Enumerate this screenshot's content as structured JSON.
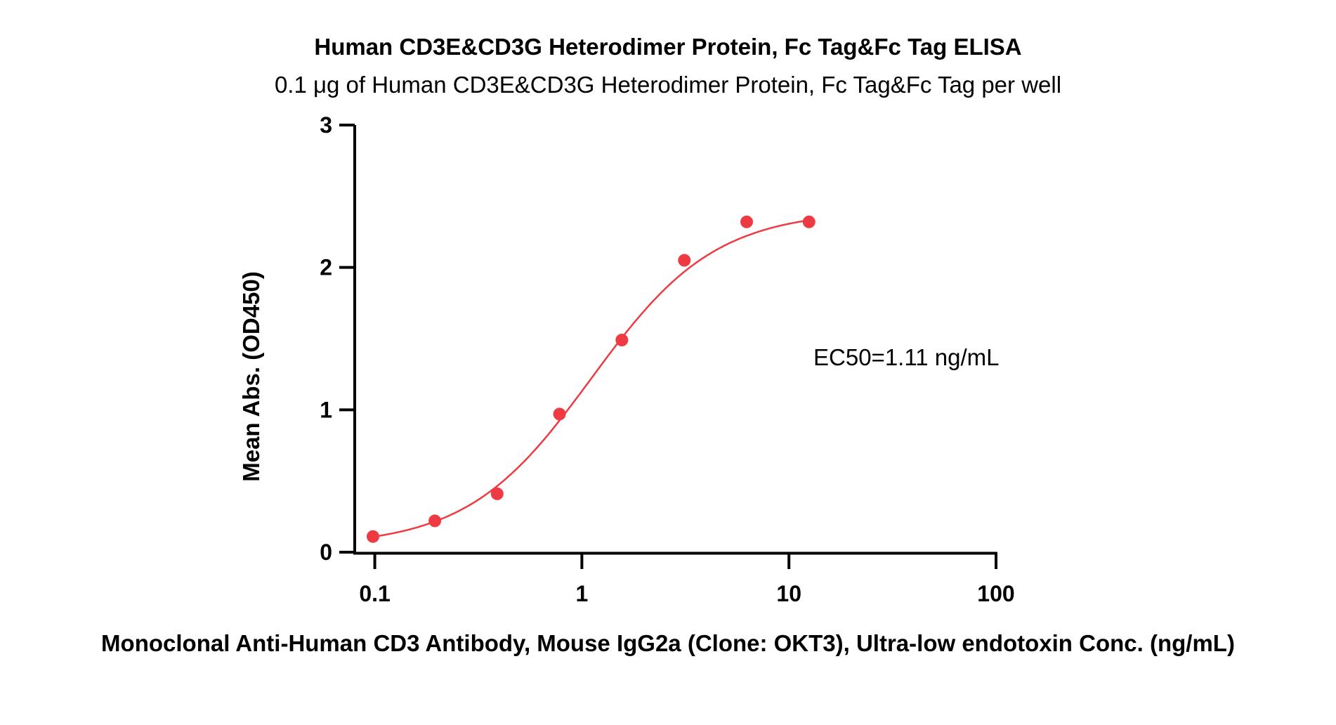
{
  "chart_data": {
    "type": "scatter",
    "title": "Human CD3E&CD3G Heterodimer Protein, Fc Tag&Fc Tag ELISA",
    "subtitle": "0.1 μg of Human CD3E&CD3G Heterodimer Protein, Fc Tag&Fc Tag per well",
    "xlabel": "Monoclonal Anti-Human CD3 Antibody, Mouse IgG2a (Clone: OKT3), Ultra-low endotoxin Conc. (ng/mL)",
    "ylabel": "Mean Abs. (OD450)",
    "xscale": "log",
    "xlim": [
      0.08,
      100
    ],
    "ylim": [
      0,
      3
    ],
    "x_ticks": [
      0.1,
      1,
      10,
      100
    ],
    "x_tick_labels": [
      "0.1",
      "1",
      "10",
      "100"
    ],
    "y_ticks": [
      0,
      1,
      2,
      3
    ],
    "y_tick_labels": [
      "0",
      "1",
      "2",
      "3"
    ],
    "grid": false,
    "annotation": "EC50=1.11 ng/mL",
    "color": "#ee3b43",
    "series": [
      {
        "x": [
          0.098,
          0.195,
          0.39,
          0.78,
          1.56,
          3.125,
          6.25,
          12.5
        ],
        "y": [
          0.11,
          0.22,
          0.41,
          0.97,
          1.49,
          2.05,
          2.32,
          2.32
        ]
      }
    ],
    "fit": {
      "type": "4PL",
      "bottom": 0.04,
      "top": 2.4,
      "ec50": 1.11,
      "hill": 1.45,
      "x_range": [
        0.098,
        12.5
      ]
    }
  }
}
